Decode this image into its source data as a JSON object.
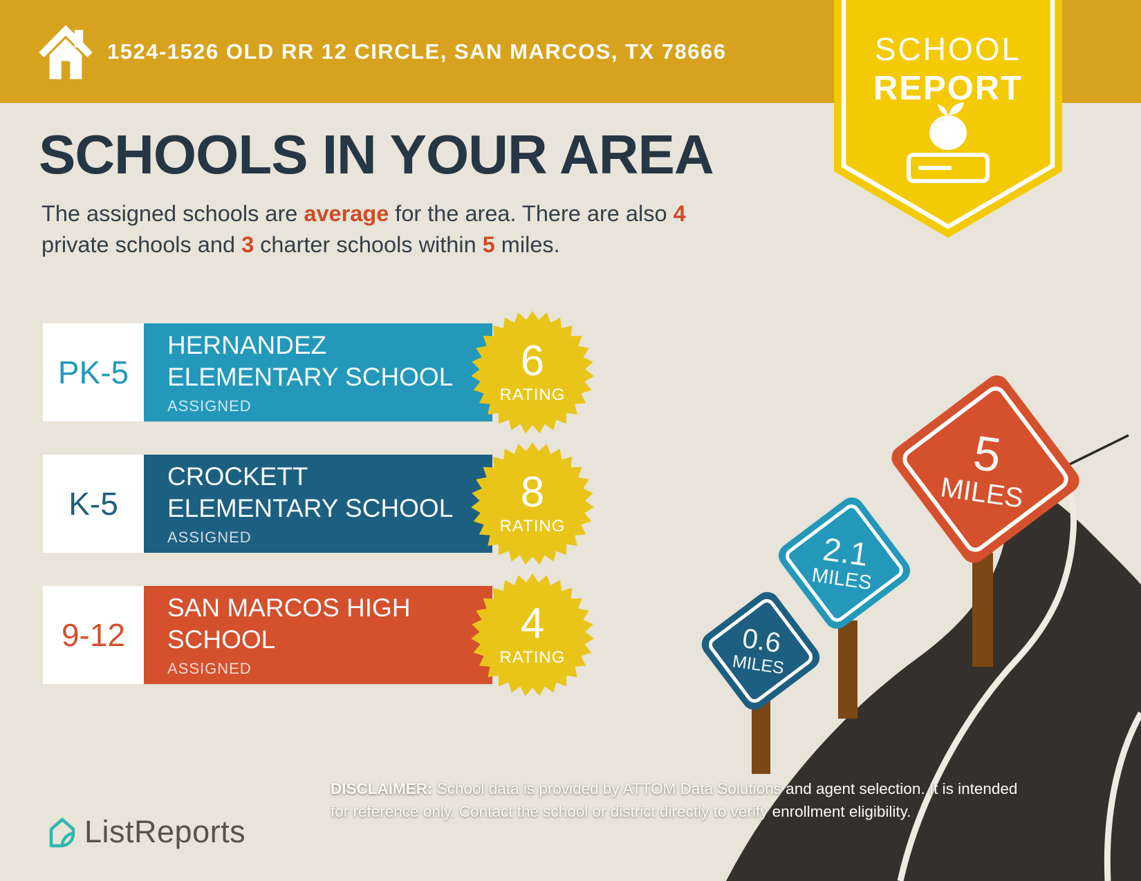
{
  "header": {
    "address": "1524-1526 OLD RR 12 CIRCLE, SAN MARCOS, TX 78666",
    "banner_color": "#d7a31f"
  },
  "report_badge": {
    "line1": "SCHOOL",
    "line2": "REPORT",
    "color": "#f4ca05"
  },
  "title": "SCHOOLS IN YOUR AREA",
  "intro": {
    "p1": "The assigned schools are ",
    "hl1": "average",
    "p2": " for the area. There are also ",
    "hl2": "4",
    "p3": " private schools and ",
    "hl3": "3",
    "p4": " charter schools within ",
    "hl4": "5",
    "p5": " miles.",
    "highlight_color": "#cf4b27"
  },
  "schools": [
    {
      "grades": "PK-5",
      "name": "HERNANDEZ ELEMENTARY SCHOOL",
      "status": "ASSIGNED",
      "rating": "6",
      "rating_label": "RATING",
      "color": "#2398ba"
    },
    {
      "grades": "K-5",
      "name": "CROCKETT ELEMENTARY SCHOOL",
      "status": "ASSIGNED",
      "rating": "8",
      "rating_label": "RATING",
      "color": "#1d5f80"
    },
    {
      "grades": "9-12",
      "name": "SAN MARCOS HIGH SCHOOL",
      "status": "ASSIGNED",
      "rating": "4",
      "rating_label": "RATING",
      "color": "#d5502c"
    }
  ],
  "starburst_color": "#e9c51a",
  "distance_signs": [
    {
      "distance": "0.6",
      "unit": "MILES",
      "color": "#1d5f80"
    },
    {
      "distance": "2.1",
      "unit": "MILES",
      "color": "#2398ba"
    },
    {
      "distance": "5",
      "unit": "MILES",
      "color": "#d5502c"
    }
  ],
  "road": {
    "color": "#34312d",
    "lane_color": "#f0ebe0",
    "post_color": "#7b4715"
  },
  "footer": {
    "brand": "ListReports",
    "brand_color": "#2fb8b0",
    "disclaimer_label": "DISCLAIMER:",
    "disclaimer_text": " School data is provided by ATTOM Data Solutions and agent selection. It is intended for reference only. Contact the school or district directly to verify enrollment eligibility."
  }
}
